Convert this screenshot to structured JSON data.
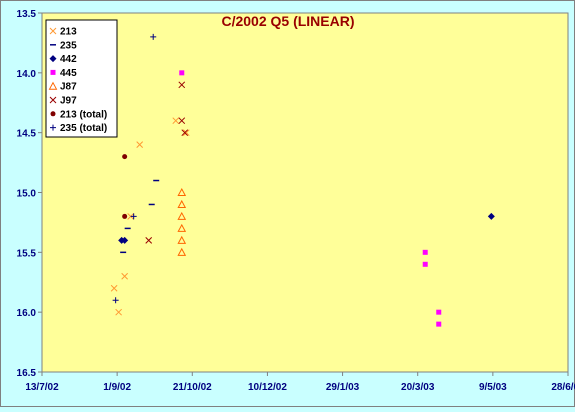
{
  "chart_data": {
    "type": "scatter",
    "title": "C/2002 Q5 (LINEAR)",
    "xlabel": "",
    "ylabel": "",
    "x_range": [
      "2002-07-13",
      "2003-06-28"
    ],
    "x_tick_labels": [
      "13/7/02",
      "1/9/02",
      "21/10/02",
      "10/12/02",
      "29/1/03",
      "20/3/03",
      "9/5/03",
      "28/6/03"
    ],
    "x_tick_dates": [
      "2002-07-13",
      "2002-09-01",
      "2002-10-21",
      "2002-12-10",
      "2003-01-29",
      "2003-03-20",
      "2003-05-09",
      "2003-06-28"
    ],
    "ylim": [
      13.5,
      16.5
    ],
    "y_reversed": true,
    "y_ticks": [
      13.5,
      14.0,
      14.5,
      15.0,
      15.5,
      16.0,
      16.5
    ],
    "y_tick_labels": [
      "13.5",
      "14.0",
      "14.5",
      "15.0",
      "15.5",
      "16.0",
      "16.5"
    ],
    "grid": false,
    "legend_position": "top-left",
    "colors": {
      "plot_background": "#ffff99",
      "outer_background": "#c9ffff",
      "title": "#990000",
      "axis_labels": "#000080",
      "plot_border": "#808080"
    },
    "series": [
      {
        "name": "213",
        "marker": "x",
        "color": "#ff9933",
        "points": [
          [
            "2002-08-30",
            15.8
          ],
          [
            "2002-09-02",
            16.0
          ],
          [
            "2002-09-06",
            15.7
          ],
          [
            "2002-09-10",
            15.2
          ],
          [
            "2002-09-16",
            14.6
          ],
          [
            "2002-10-10",
            14.4
          ],
          [
            "2002-10-17",
            14.5
          ]
        ]
      },
      {
        "name": "235",
        "marker": "dash",
        "color": "#000080",
        "points": [
          [
            "2002-09-05",
            15.5
          ],
          [
            "2002-09-08",
            15.3
          ],
          [
            "2002-09-24",
            15.1
          ],
          [
            "2002-09-27",
            14.9
          ]
        ]
      },
      {
        "name": "442",
        "marker": "diamond",
        "color": "#000080",
        "points": [
          [
            "2002-09-04",
            15.4
          ],
          [
            "2002-09-06",
            15.4
          ],
          [
            "2003-05-08",
            15.2
          ]
        ]
      },
      {
        "name": "445",
        "marker": "square",
        "color": "#ff00ff",
        "points": [
          [
            "2002-10-14",
            14.0
          ],
          [
            "2003-03-25",
            15.5
          ],
          [
            "2003-03-25",
            15.6
          ],
          [
            "2003-04-03",
            16.0
          ],
          [
            "2003-04-03",
            16.1
          ]
        ]
      },
      {
        "name": "J87",
        "marker": "triangle",
        "color": "#ff6600",
        "points": [
          [
            "2002-10-14",
            15.0
          ],
          [
            "2002-10-14",
            15.1
          ],
          [
            "2002-10-14",
            15.2
          ],
          [
            "2002-10-14",
            15.3
          ],
          [
            "2002-10-14",
            15.4
          ],
          [
            "2002-10-14",
            15.5
          ]
        ]
      },
      {
        "name": "J97",
        "marker": "x",
        "color": "#990000",
        "points": [
          [
            "2002-09-22",
            15.4
          ],
          [
            "2002-10-14",
            14.1
          ],
          [
            "2002-10-14",
            14.4
          ],
          [
            "2002-10-16",
            14.5
          ]
        ]
      },
      {
        "name": "213 (total)",
        "marker": "circle",
        "color": "#800000",
        "points": [
          [
            "2002-09-06",
            14.7
          ],
          [
            "2002-09-06",
            15.2
          ]
        ]
      },
      {
        "name": "235 (total)",
        "marker": "plus",
        "color": "#000080",
        "points": [
          [
            "2002-08-31",
            15.9
          ],
          [
            "2002-09-12",
            15.2
          ],
          [
            "2002-09-25",
            13.7
          ]
        ]
      }
    ]
  }
}
